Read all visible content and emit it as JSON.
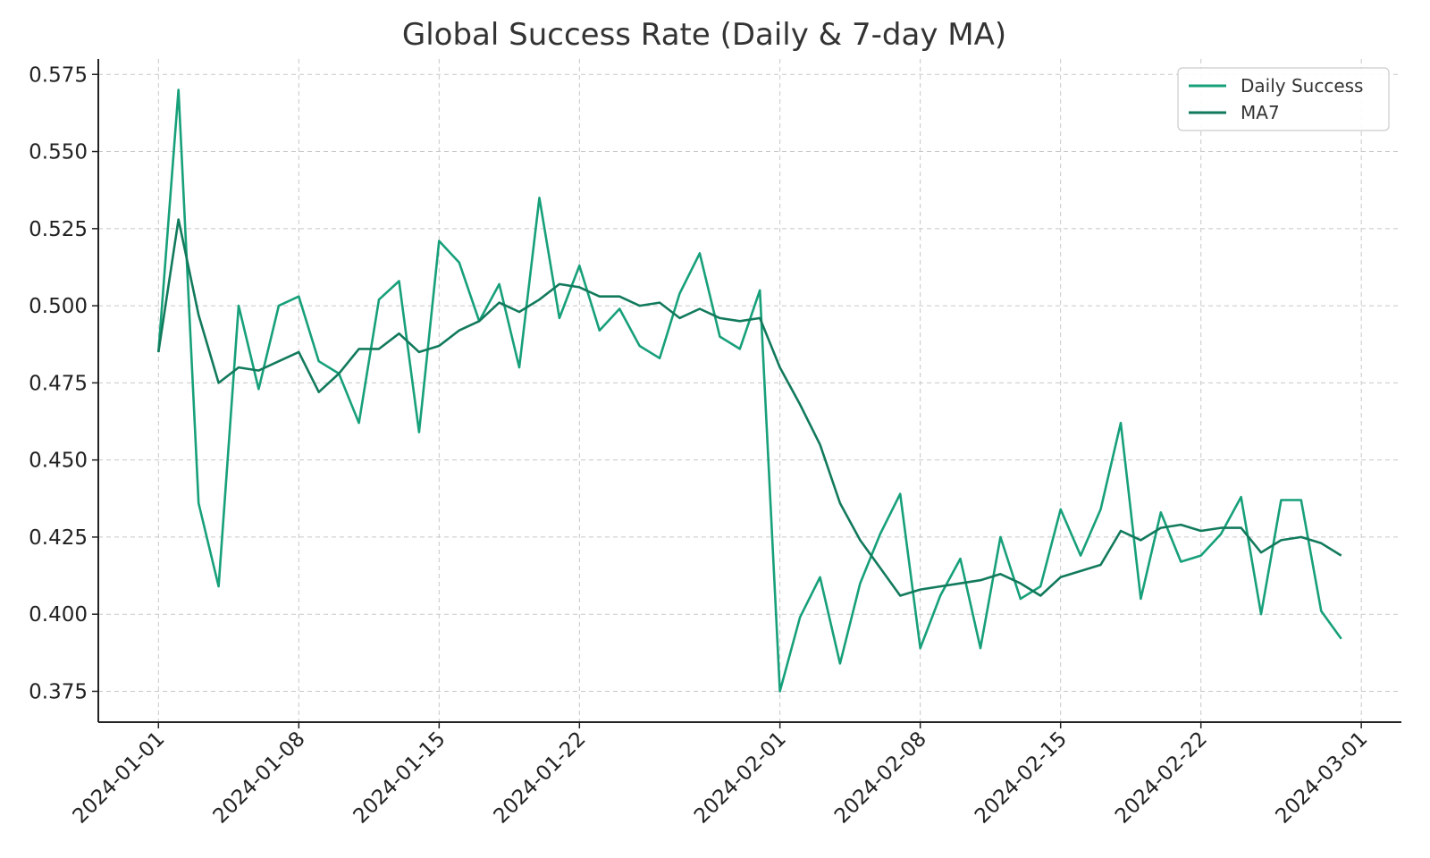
{
  "chart_data": {
    "type": "line",
    "title": "Global Success Rate (Daily & 7-day MA)",
    "xlabel": "",
    "ylabel": "",
    "x_dates": [
      "2024-01-01",
      "2024-01-02",
      "2024-01-03",
      "2024-01-04",
      "2024-01-05",
      "2024-01-06",
      "2024-01-07",
      "2024-01-08",
      "2024-01-09",
      "2024-01-10",
      "2024-01-11",
      "2024-01-12",
      "2024-01-13",
      "2024-01-14",
      "2024-01-15",
      "2024-01-16",
      "2024-01-17",
      "2024-01-18",
      "2024-01-19",
      "2024-01-20",
      "2024-01-21",
      "2024-01-22",
      "2024-01-23",
      "2024-01-24",
      "2024-01-25",
      "2024-01-26",
      "2024-01-27",
      "2024-01-28",
      "2024-01-29",
      "2024-01-30",
      "2024-01-31",
      "2024-02-01",
      "2024-02-02",
      "2024-02-03",
      "2024-02-04",
      "2024-02-05",
      "2024-02-06",
      "2024-02-07",
      "2024-02-08",
      "2024-02-09",
      "2024-02-10",
      "2024-02-11",
      "2024-02-12",
      "2024-02-13",
      "2024-02-14",
      "2024-02-15",
      "2024-02-16",
      "2024-02-17",
      "2024-02-18",
      "2024-02-19",
      "2024-02-20",
      "2024-02-21",
      "2024-02-22",
      "2024-02-23",
      "2024-02-24",
      "2024-02-25",
      "2024-02-26",
      "2024-02-27",
      "2024-02-28",
      "2024-02-29"
    ],
    "series": [
      {
        "name": "Daily Success",
        "color": "#17a07a",
        "values": [
          0.485,
          0.57,
          0.436,
          0.409,
          0.5,
          0.473,
          0.5,
          0.503,
          0.482,
          0.478,
          0.462,
          0.502,
          0.508,
          0.459,
          0.521,
          0.514,
          0.495,
          0.507,
          0.48,
          0.535,
          0.496,
          0.513,
          0.492,
          0.499,
          0.487,
          0.483,
          0.504,
          0.517,
          0.49,
          0.486,
          0.505,
          0.375,
          0.399,
          0.412,
          0.384,
          0.41,
          0.426,
          0.439,
          0.389,
          0.406,
          0.418,
          0.389,
          0.425,
          0.405,
          0.409,
          0.434,
          0.419,
          0.434,
          0.462,
          0.405,
          0.433,
          0.417,
          0.419,
          0.426,
          0.438,
          0.4,
          0.437,
          0.437,
          0.401,
          0.392
        ]
      },
      {
        "name": "MA7",
        "color": "#127a5c",
        "values": [
          0.485,
          0.528,
          0.497,
          0.475,
          0.48,
          0.479,
          0.482,
          0.485,
          0.472,
          0.478,
          0.486,
          0.486,
          0.491,
          0.485,
          0.487,
          0.492,
          0.495,
          0.501,
          0.498,
          0.502,
          0.507,
          0.506,
          0.503,
          0.503,
          0.5,
          0.501,
          0.496,
          0.499,
          0.496,
          0.495,
          0.496,
          0.48,
          0.468,
          0.455,
          0.436,
          0.424,
          0.415,
          0.406,
          0.408,
          0.409,
          0.41,
          0.411,
          0.413,
          0.41,
          0.406,
          0.412,
          0.414,
          0.416,
          0.427,
          0.424,
          0.428,
          0.429,
          0.427,
          0.428,
          0.428,
          0.42,
          0.424,
          0.425,
          0.423,
          0.419
        ]
      }
    ],
    "x_ticks": [
      "2024-01-01",
      "2024-01-08",
      "2024-01-15",
      "2024-01-22",
      "2024-02-01",
      "2024-02-08",
      "2024-02-15",
      "2024-02-22",
      "2024-03-01"
    ],
    "y_ticks": [
      "0.375",
      "0.400",
      "0.425",
      "0.450",
      "0.475",
      "0.500",
      "0.525",
      "0.550",
      "0.575"
    ],
    "xlim": [
      "2023-12-29",
      "2024-03-03"
    ],
    "ylim": [
      0.365,
      0.58
    ],
    "grid": true,
    "legend_position": "top-right"
  }
}
